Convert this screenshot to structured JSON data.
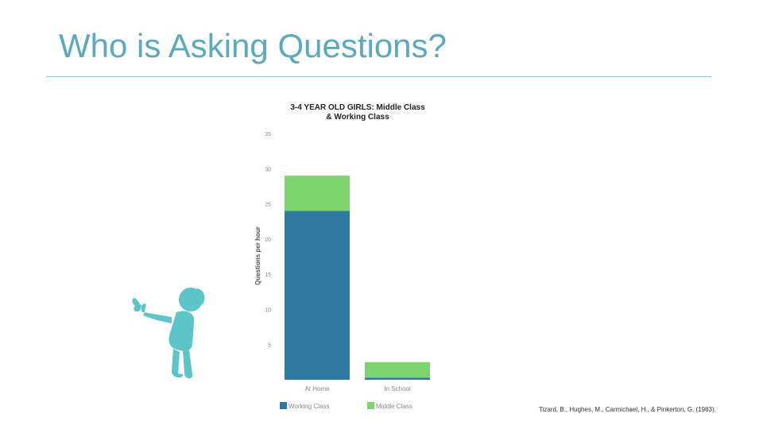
{
  "slide": {
    "title": "Who is Asking Questions?",
    "citation": "Tizard, B., Hughes, M., Carmichael, H., & Pinkerton, G. (1983).",
    "accent_color": "#5aa9bd"
  },
  "decoration": {
    "icon": "child-with-butterfly-icon",
    "color": "#5bc5c9"
  },
  "chart_data": {
    "type": "bar",
    "stacked": true,
    "title_lines": [
      "3-4 YEAR OLD GIRLS: Middle Class",
      "& Working Class"
    ],
    "categories": [
      "At Home",
      "In School"
    ],
    "series": [
      {
        "name": "Working Class",
        "values": [
          24,
          0.3
        ],
        "color": "#2e7aa0"
      },
      {
        "name": "Middle Class",
        "values": [
          5,
          2.2
        ],
        "color": "#7ed56f"
      }
    ],
    "ylabel": "Questions per hour",
    "ylim": [
      0,
      35
    ],
    "yticks": [
      5,
      10,
      15,
      20,
      25,
      30,
      35
    ],
    "grid": false,
    "legend": "bottom"
  }
}
